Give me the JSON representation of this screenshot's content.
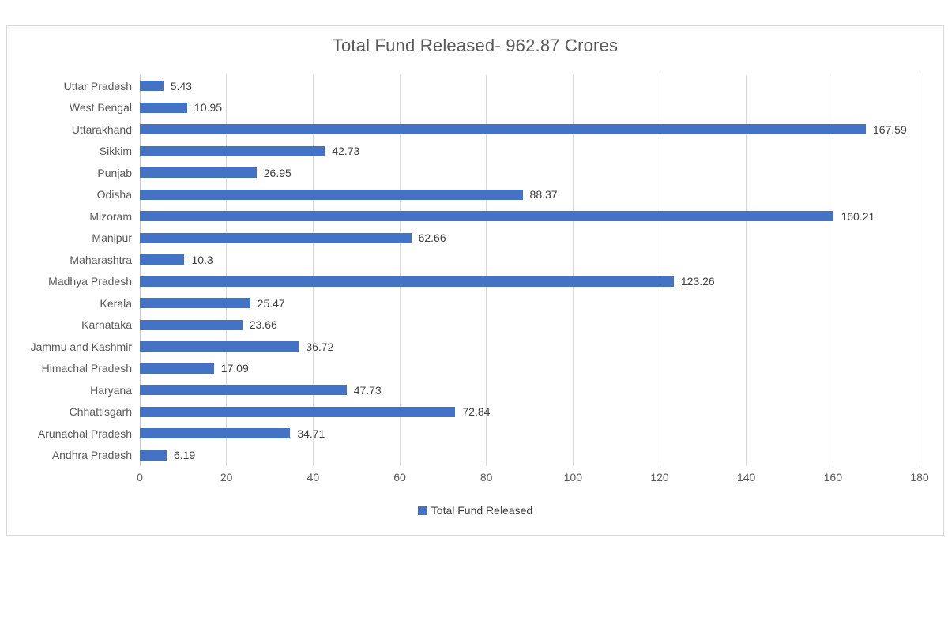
{
  "chart_data": {
    "type": "bar",
    "orientation": "horizontal",
    "title": "Total Fund Released- 962.87 Crores",
    "legend_label": "Total Fund Released",
    "legend_position": "bottom",
    "grid": true,
    "xlim": [
      0,
      180
    ],
    "x_ticks": [
      0,
      20,
      40,
      60,
      80,
      100,
      120,
      140,
      160,
      180
    ],
    "categories": [
      "Uttar Pradesh",
      "West Bengal",
      "Uttarakhand",
      "Sikkim",
      "Punjab",
      "Odisha",
      "Mizoram",
      "Manipur",
      "Maharashtra",
      "Madhya Pradesh",
      "Kerala",
      "Karnataka",
      "Jammu and Kashmir",
      "Himachal Pradesh",
      "Haryana",
      "Chhattisgarh",
      "Arunachal Pradesh",
      "Andhra Pradesh"
    ],
    "values": [
      5.43,
      10.95,
      167.59,
      42.73,
      26.95,
      88.37,
      160.21,
      62.66,
      10.3,
      123.26,
      25.47,
      23.66,
      36.72,
      17.09,
      47.73,
      72.84,
      34.71,
      6.19
    ],
    "value_labels": [
      "5.43",
      "10.95",
      "167.59",
      "42.73",
      "26.95",
      "88.37",
      "160.21",
      "62.66",
      "10.3",
      "123.26",
      "25.47",
      "23.66",
      "36.72",
      "17.09",
      "47.73",
      "72.84",
      "34.71",
      "6.19"
    ]
  },
  "colors": {
    "bar": "#4472C4",
    "title_text": "#595959",
    "axis_text": "#595959",
    "data_label_text": "#404040",
    "gridline": "#D9D9D9",
    "axis_line": "#C6C6C6",
    "chart_border": "#D9D9D9",
    "background": "#FFFFFF"
  }
}
